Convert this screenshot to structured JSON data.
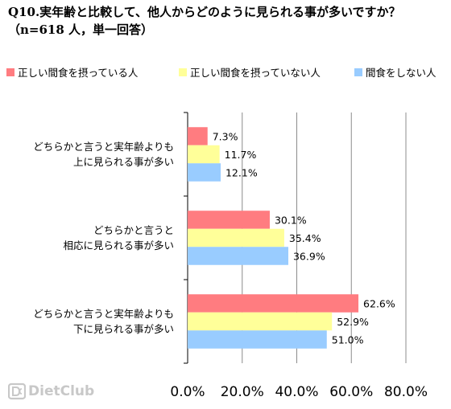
{
  "chart_data": {
    "type": "bar",
    "orientation": "horizontal",
    "title": "Q10.実年齢と比較して、他人からどのように見られる事が多いですか？（n=618 人，単一回答）",
    "categories": [
      [
        "どちらかと言うと実年齢よりも",
        "上に見られる事が多い"
      ],
      [
        "どちらかと言うと",
        "相応に見られる事が多い"
      ],
      [
        "どちらかと言うと実年齢よりも",
        "下に見られる事が多い"
      ]
    ],
    "series": [
      {
        "name": "正しい間食を摂っている人",
        "color": "#ff7c80",
        "values": [
          7.3,
          30.1,
          62.6
        ]
      },
      {
        "name": "正しい間食を摂っていない人",
        "color": "#ffff99",
        "values": [
          11.7,
          35.4,
          52.9
        ]
      },
      {
        "name": "間食をしない人",
        "color": "#99ccff",
        "values": [
          12.1,
          36.9,
          51.0
        ]
      }
    ],
    "value_labels": [
      [
        "7.3%",
        "30.1%",
        "62.6%"
      ],
      [
        "11.7%",
        "35.4%",
        "52.9%"
      ],
      [
        "12.1%",
        "36.9%",
        "51.0%"
      ]
    ],
    "xlim": [
      0,
      80
    ],
    "xticks": [
      "0.0%",
      "20.0%",
      "40.0%",
      "60.0%",
      "80.0%"
    ],
    "grid": true,
    "legend_position": "top"
  },
  "logo": {
    "text": "DietClub"
  }
}
